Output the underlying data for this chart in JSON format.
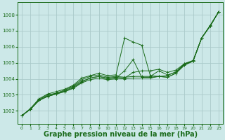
{
  "bg_color": "#cce8e8",
  "grid_color": "#aacaca",
  "line_color": "#1a6b1a",
  "marker_color": "#1a6b1a",
  "xlabel": "Graphe pression niveau de la mer (hPa)",
  "xlabel_fontsize": 7,
  "xlim": [
    -0.5,
    23.5
  ],
  "ylim": [
    1001.2,
    1008.8
  ],
  "yticks": [
    1002,
    1003,
    1004,
    1005,
    1006,
    1007,
    1008
  ],
  "xticks": [
    0,
    1,
    2,
    3,
    4,
    5,
    6,
    7,
    8,
    9,
    10,
    11,
    12,
    13,
    14,
    15,
    16,
    17,
    18,
    19,
    20,
    21,
    22,
    23
  ],
  "series": [
    [
      1001.7,
      1002.1,
      1002.65,
      1002.9,
      1003.05,
      1003.2,
      1003.4,
      1003.75,
      1003.95,
      1004.05,
      1003.95,
      1004.0,
      1004.0,
      1004.05,
      1004.05,
      1004.05,
      1004.15,
      1004.1,
      1004.35,
      1004.85,
      1005.1,
      1006.55,
      1007.3,
      1008.2
    ],
    [
      1001.7,
      1002.1,
      1002.65,
      1002.9,
      1003.05,
      1003.2,
      1003.45,
      1003.8,
      1004.05,
      1004.15,
      1004.05,
      1004.1,
      1004.05,
      1004.4,
      1004.5,
      1004.5,
      1004.6,
      1004.4,
      1004.55,
      1004.95,
      1005.15,
      1006.55,
      1007.3,
      1008.2
    ],
    [
      1001.7,
      1002.1,
      1002.7,
      1003.0,
      1003.1,
      1003.3,
      1003.55,
      1003.95,
      1004.15,
      1004.25,
      1004.1,
      1004.15,
      1004.1,
      1004.15,
      1004.15,
      1004.15,
      1004.5,
      1004.25,
      1004.4,
      1004.9,
      1005.12,
      1006.55,
      1007.35,
      1008.2
    ],
    [
      1001.7,
      1002.15,
      1002.75,
      1003.05,
      1003.2,
      1003.35,
      1003.6,
      1004.05,
      1004.2,
      1004.35,
      1004.2,
      1004.25,
      1006.55,
      1006.3,
      1006.1,
      1004.2,
      1004.15,
      1004.2,
      1004.45,
      1004.95,
      1005.1,
      1006.55,
      1007.3,
      1008.2
    ],
    [
      1001.7,
      1002.1,
      1002.65,
      1002.95,
      1003.1,
      1003.25,
      1003.5,
      1003.85,
      1004.05,
      1004.15,
      1004.0,
      1004.05,
      1004.5,
      1005.2,
      1004.1,
      1004.1,
      1004.15,
      1004.1,
      1004.35,
      1004.9,
      1005.1,
      1006.55,
      1007.3,
      1008.2
    ]
  ]
}
